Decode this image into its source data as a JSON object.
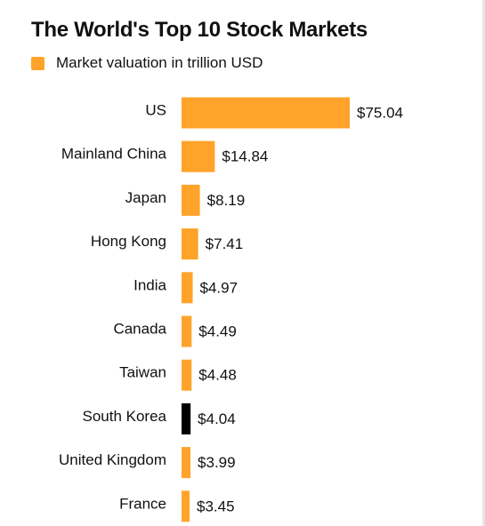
{
  "colors": {
    "accent": "#ffa32b",
    "highlight": "#000000",
    "text": "#111111"
  },
  "chart_data": {
    "type": "bar",
    "orientation": "horizontal",
    "title": "The World's Top 10 Stock Markets",
    "legend": {
      "placement": "top-left",
      "entries": [
        "Market valuation in trillion USD"
      ]
    },
    "categories": [
      "US",
      "Mainland China",
      "Japan",
      "Hong Kong",
      "India",
      "Canada",
      "Taiwan",
      "South Korea",
      "United Kingdom",
      "France"
    ],
    "series": [
      {
        "name": "Market valuation in trillion USD",
        "values": [
          75.04,
          14.84,
          8.19,
          7.41,
          4.97,
          4.49,
          4.48,
          4.04,
          3.99,
          3.45
        ]
      }
    ],
    "data_labels": [
      "$75.04",
      "$14.84",
      "$8.19",
      "$7.41",
      "$4.97",
      "$4.49",
      "$4.48",
      "$4.04",
      "$3.99",
      "$3.45"
    ],
    "highlighted_category": "South Korea",
    "xlim": [
      0,
      75.04
    ],
    "xlabel": "",
    "ylabel": "",
    "grid": false,
    "axis_visible": false
  }
}
